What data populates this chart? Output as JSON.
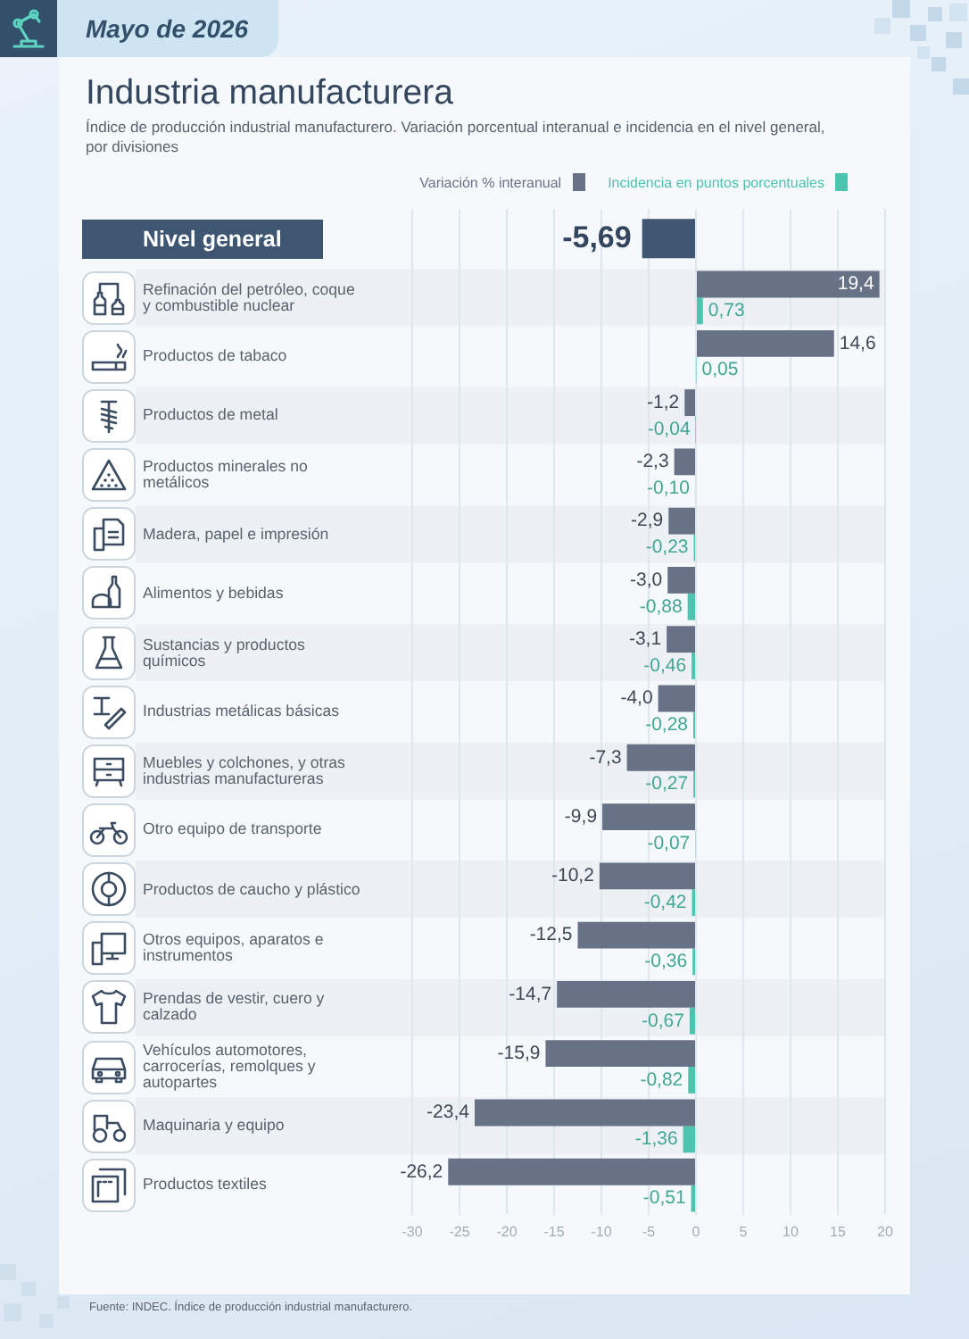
{
  "chart_data": {
    "type": "bar",
    "orientation": "horizontal",
    "title": "Industria manufacturera",
    "subtitle": "Índice de producción industrial manufacturero. Variación porcentual interanual e incidencia en el nivel general, por divisiones",
    "annotations": [
      "Mayo de 2026",
      "Fuente: INDEC. Índice de producción industrial manufacturero."
    ],
    "categories": [
      "Nivel general",
      "Refinación del petróleo, coque y combustible nuclear",
      "Productos de tabaco",
      "Productos de metal",
      "Productos minerales no metálicos",
      "Madera, papel e impresión",
      "Alimentos y bebidas",
      "Sustancias y productos químicos",
      "Industrias metálicas básicas",
      "Muebles y colchones, y otras industrias manufactureras",
      "Otro equipo de transporte",
      "Productos de caucho y plástico",
      "Otros equipos, aparatos e instrumentos",
      "Prendas de vestir, cuero y calzado",
      "Vehículos automotores, carrocerías, remolques y autopartes",
      "Maquinaria y equipo",
      "Productos textiles"
    ],
    "series": [
      {
        "name": "Variación % interanual",
        "color": "#687287",
        "colors": [
          "#3e5672",
          "#687287",
          "#687287",
          "#687287",
          "#687287",
          "#687287",
          "#687287",
          "#687287",
          "#687287",
          "#687287",
          "#687287",
          "#687287",
          "#687287",
          "#687287",
          "#687287",
          "#687287",
          "#687287"
        ],
        "values": [
          -5.69,
          19.4,
          14.6,
          -1.2,
          -2.3,
          -2.9,
          -3.0,
          -3.1,
          -4.0,
          -7.3,
          -9.9,
          -10.2,
          -12.5,
          -14.7,
          -15.9,
          -23.4,
          -26.2
        ],
        "value_labels": [
          "-5,69",
          "19,4",
          "14,6",
          "-1,2",
          "-2,3",
          "-2,9",
          "-3,0",
          "-3,1",
          "-4,0",
          "-7,3",
          "-9,9",
          "-10,2",
          "-12,5",
          "-14,7",
          "-15,9",
          "-23,4",
          "-26,2"
        ]
      },
      {
        "name": "Incidencia en puntos porcentuales",
        "color": "#4cc4ae",
        "values": [
          null,
          0.73,
          0.05,
          -0.04,
          -0.1,
          -0.23,
          -0.88,
          -0.46,
          -0.28,
          -0.27,
          -0.07,
          -0.42,
          -0.36,
          -0.67,
          -0.82,
          -1.36,
          -0.51
        ],
        "value_labels": [
          null,
          "0,73",
          "0,05",
          "-0,04",
          "-0,10",
          "-0,23",
          "-0,88",
          "-0,46",
          "-0,28",
          "-0,27",
          "-0,07",
          "-0,42",
          "-0,36",
          "-0,67",
          "-0,82",
          "-1,36",
          "-0,51"
        ]
      }
    ],
    "xlim": [
      -30,
      20
    ],
    "xticks": [
      -30,
      -25,
      -20,
      -15,
      -10,
      -5,
      0,
      5,
      10,
      15,
      20
    ],
    "grid": "x",
    "legend": "top right"
  }
}
